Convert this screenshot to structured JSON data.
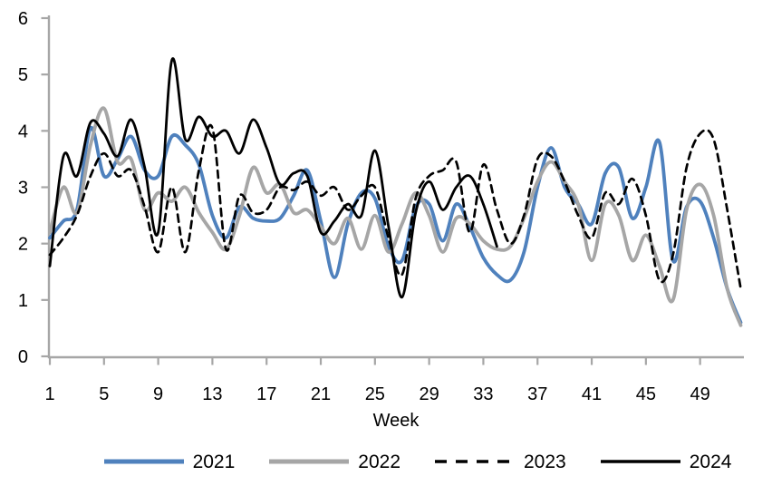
{
  "chart_data": {
    "type": "line",
    "title": "",
    "xlabel": "Week",
    "x_start": 1,
    "x_end": 52,
    "xlim": [
      1,
      52
    ],
    "ylim": [
      0,
      6
    ],
    "grid": false,
    "legend_position": "bottom",
    "axis_color": "#a6a6a6",
    "text_color": "#000000",
    "x_tick_labels": [
      1,
      5,
      9,
      13,
      17,
      21,
      25,
      29,
      33,
      37,
      41,
      45,
      49
    ],
    "y_tick_labels": [
      0,
      1,
      2,
      3,
      4,
      5,
      6
    ],
    "series": [
      {
        "name": "2021",
        "color": "#4f81bd",
        "style": "solid",
        "width": 3.8,
        "values": [
          2.1,
          2.4,
          2.6,
          4.05,
          3.2,
          3.5,
          3.9,
          3.3,
          3.2,
          3.9,
          3.75,
          3.4,
          2.5,
          2.1,
          2.65,
          2.45,
          2.4,
          2.45,
          2.85,
          3.3,
          2.4,
          1.4,
          2.35,
          2.9,
          2.8,
          1.95,
          1.7,
          2.65,
          2.7,
          2.05,
          2.7,
          2.3,
          1.75,
          1.45,
          1.35,
          1.85,
          3.0,
          3.7,
          3.0,
          2.7,
          2.35,
          3.25,
          3.35,
          2.45,
          3.0,
          3.8,
          1.7,
          2.65,
          2.75,
          2.1,
          1.2,
          0.6
        ]
      },
      {
        "name": "2022",
        "color": "#a6a6a6",
        "style": "solid",
        "width": 3.8,
        "values": [
          2.2,
          3.0,
          2.55,
          3.75,
          4.4,
          3.45,
          3.5,
          2.6,
          2.9,
          2.75,
          3.0,
          2.55,
          2.2,
          1.9,
          2.5,
          3.35,
          2.9,
          3.05,
          2.55,
          2.6,
          2.3,
          2.0,
          2.45,
          1.9,
          2.5,
          1.85,
          2.35,
          2.9,
          2.5,
          1.85,
          2.45,
          2.35,
          2.05,
          1.9,
          1.95,
          2.45,
          3.1,
          3.45,
          3.1,
          2.7,
          1.7,
          2.7,
          2.5,
          1.7,
          2.15,
          1.6,
          1.0,
          2.6,
          3.05,
          2.5,
          1.2,
          0.55
        ]
      },
      {
        "name": "2023",
        "color": "#000000",
        "style": "dashed",
        "width": 2.7,
        "values": [
          1.8,
          2.1,
          2.5,
          3.2,
          3.6,
          3.2,
          3.3,
          2.65,
          1.85,
          3.0,
          1.85,
          3.3,
          4.05,
          1.9,
          2.85,
          2.55,
          2.6,
          3.0,
          2.95,
          3.1,
          2.85,
          3.0,
          2.6,
          2.85,
          3.0,
          2.1,
          1.45,
          2.8,
          3.2,
          3.3,
          3.45,
          2.2,
          3.4,
          2.6,
          2.0,
          2.5,
          3.5,
          3.55,
          3.1,
          2.5,
          2.1,
          2.9,
          2.7,
          3.15,
          2.5,
          1.35,
          1.8,
          3.35,
          3.95,
          3.85,
          2.6,
          1.2
        ]
      },
      {
        "name": "2024",
        "color": "#000000",
        "style": "solid",
        "width": 2.8,
        "values": [
          1.6,
          3.55,
          3.2,
          4.15,
          3.95,
          3.55,
          4.2,
          3.35,
          2.2,
          5.25,
          3.85,
          4.25,
          3.9,
          4.0,
          3.6,
          4.2,
          3.7,
          3.05,
          3.25,
          3.2,
          2.2,
          2.4,
          2.7,
          2.5,
          3.65,
          2.3,
          1.05,
          2.55,
          3.1,
          2.6,
          3.0,
          3.2,
          2.7,
          1.95
        ]
      }
    ]
  }
}
